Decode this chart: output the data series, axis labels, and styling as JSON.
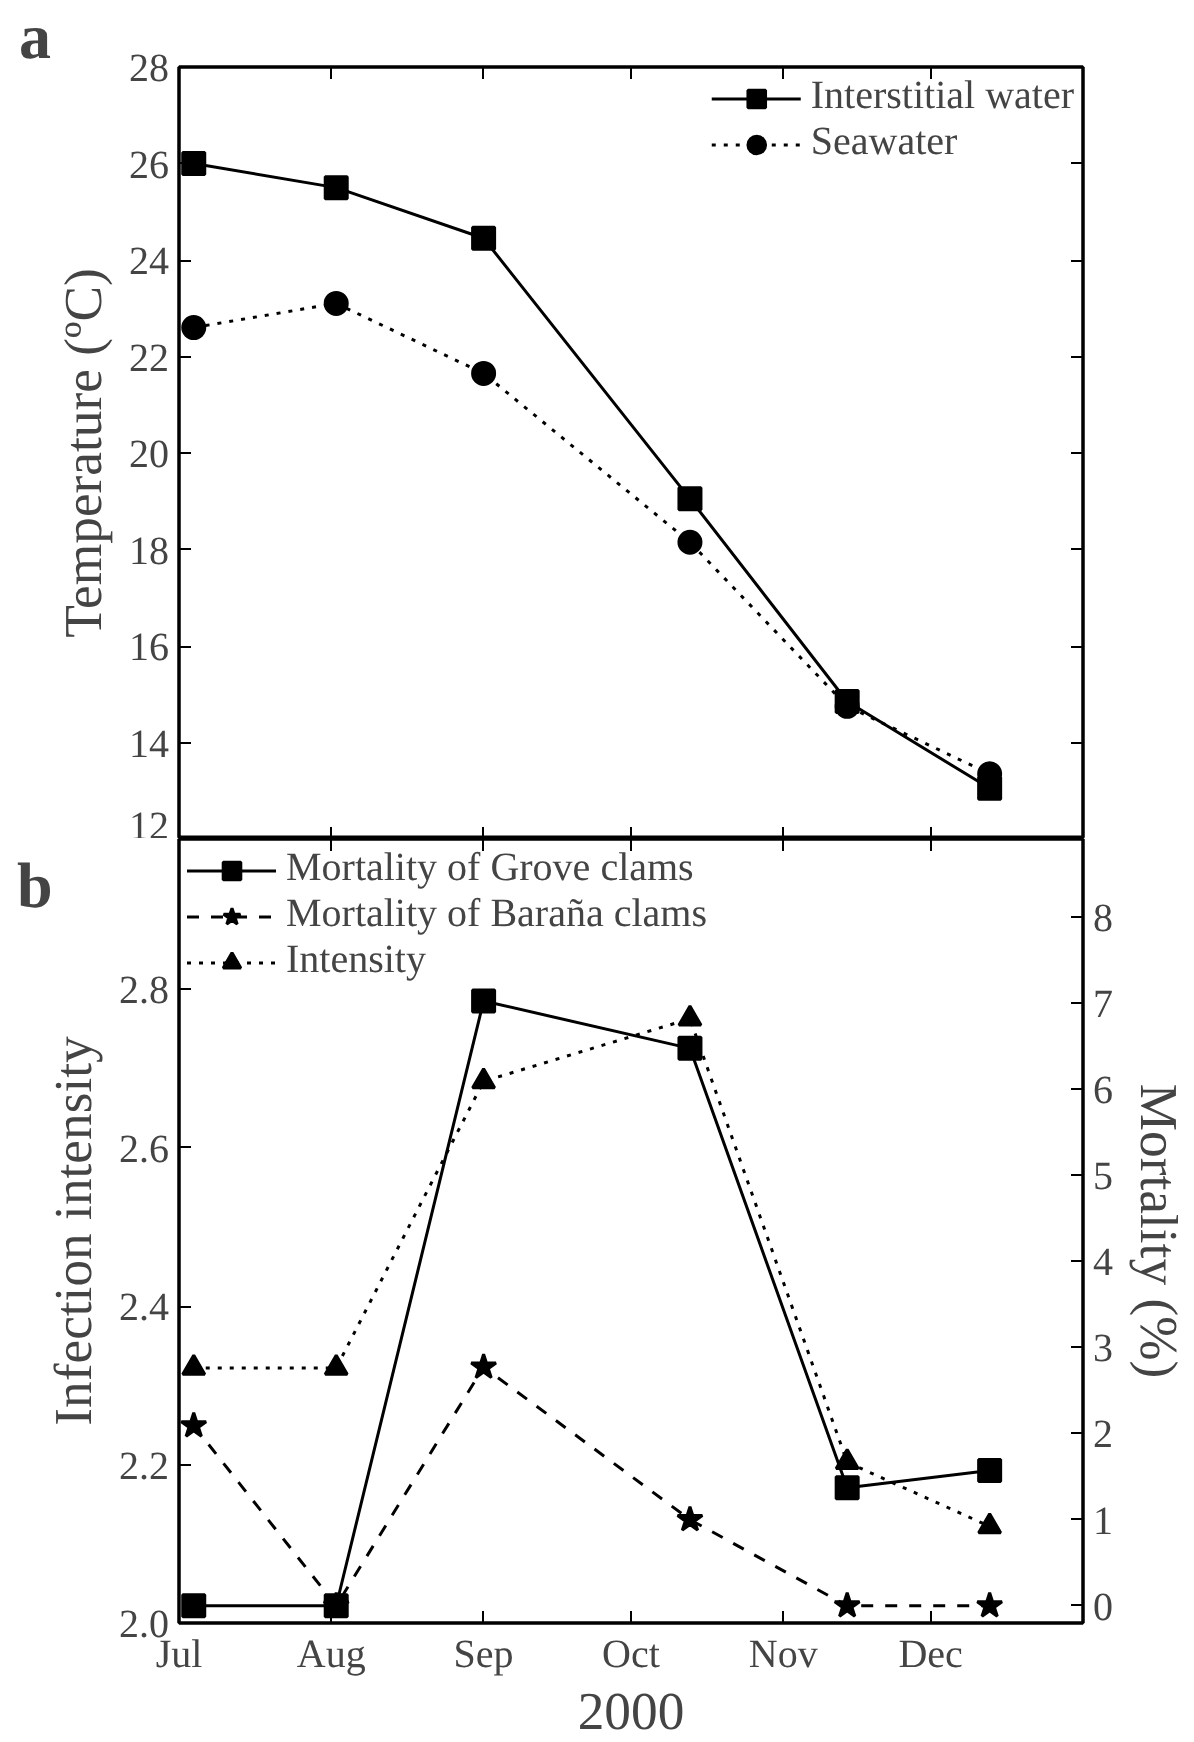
{
  "chart_data": [
    {
      "type": "line",
      "annotations": [
        "a"
      ],
      "ylabel": "Temperature (ºC)",
      "x": [
        "2000-07-04",
        "2000-08-02",
        "2000-09-01",
        "2000-10-13",
        "2000-11-14",
        "2000-12-13"
      ],
      "xlim": [
        "2000-07-01",
        "2001-01-01"
      ],
      "xticks": [
        {
          "value": "2000-07-01",
          "label": null
        },
        {
          "value": "2000-08-01",
          "label": null
        },
        {
          "value": "2000-09-01",
          "label": null
        },
        {
          "value": "2000-10-01",
          "label": null
        },
        {
          "value": "2000-11-01",
          "label": null
        },
        {
          "value": "2000-12-01",
          "label": null
        }
      ],
      "ylim": [
        12,
        28
      ],
      "yticks": [
        12,
        14,
        16,
        18,
        20,
        22,
        24,
        26,
        28
      ],
      "tick_labels": "y",
      "grid": false,
      "legend": "top right",
      "series": [
        {
          "name": "Interstitial water",
          "color": "#000000",
          "marker": "square",
          "line_style": "solid",
          "values": [
            26.0,
            25.5,
            24.45,
            19.05,
            14.85,
            13.05
          ]
        },
        {
          "name": "Seawater",
          "color": "#000000",
          "marker": "circle",
          "line_style": "dotted",
          "values": [
            22.6,
            23.1,
            21.65,
            18.15,
            14.75,
            13.35
          ]
        }
      ]
    },
    {
      "type": "line",
      "annotations": [
        "b"
      ],
      "xlabel": "2000",
      "ylabel": "Infection intensity",
      "y2label": "Mortality (%)",
      "x": [
        "2000-07-04",
        "2000-08-02",
        "2000-09-01",
        "2000-10-13",
        "2000-11-14",
        "2000-12-13"
      ],
      "xlim": [
        "2000-07-01",
        "2001-01-01"
      ],
      "xticks": [
        {
          "value": "2000-07-01",
          "label": "Jul"
        },
        {
          "value": "2000-08-01",
          "label": "Aug"
        },
        {
          "value": "2000-09-01",
          "label": "Sep"
        },
        {
          "value": "2000-10-01",
          "label": "Oct"
        },
        {
          "value": "2000-11-01",
          "label": "Nov"
        },
        {
          "value": "2000-12-01",
          "label": "Dec"
        }
      ],
      "ylim": [
        2.0,
        2.99
      ],
      "yticks": [
        {
          "value": 2.0,
          "label": "2.0"
        },
        2.2,
        2.4,
        2.6,
        2.8
      ],
      "y2lim": [
        -0.2,
        8.9
      ],
      "y2ticks": [
        0,
        1,
        2,
        3,
        4,
        5,
        6,
        7,
        8
      ],
      "grid": false,
      "legend": "top left",
      "series": [
        {
          "name": "Mortality of Grove clams",
          "color": "#000000",
          "marker": "square",
          "line_style": "solid",
          "axis": "y2",
          "values": [
            0,
            0,
            7.02,
            6.47,
            1.37,
            1.57
          ]
        },
        {
          "name": "Mortality of Baraña clams",
          "color": "#000000",
          "marker": "star",
          "line_style": "dashed",
          "axis": "y2",
          "values": [
            2.09,
            0,
            2.77,
            1.0,
            0,
            0
          ]
        },
        {
          "name": "Intensity",
          "color": "#000000",
          "marker": "triangle",
          "line_style": "dotted",
          "values": [
            2.322,
            2.322,
            2.684,
            2.763,
            2.203,
            2.122
          ]
        }
      ]
    }
  ]
}
